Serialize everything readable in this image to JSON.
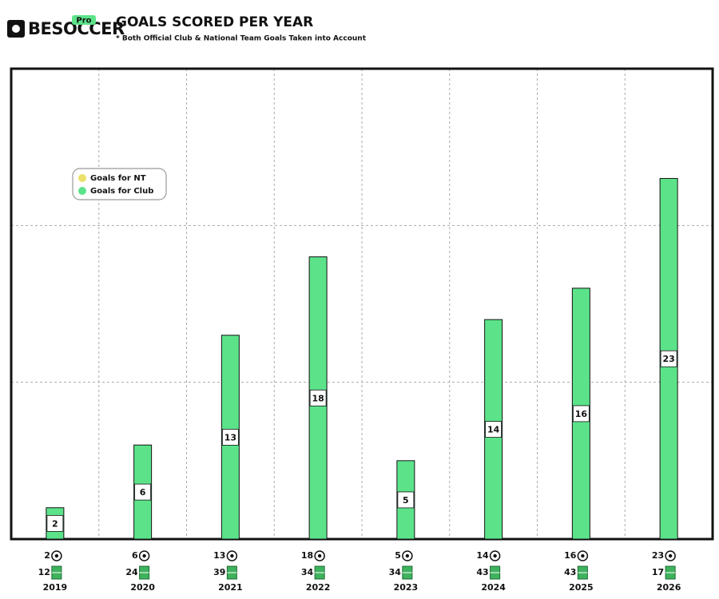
{
  "header": {
    "logo": "BESOCCER",
    "badge": "Pro"
  },
  "chart_data": {
    "type": "bar",
    "title": "GOALS SCORED PER YEAR",
    "subtitle": "* Both Official Club & National Team Goals Taken into Account",
    "categories": [
      "2019",
      "2020",
      "2021",
      "2022",
      "2023",
      "2024",
      "2025",
      "2026"
    ],
    "series": [
      {
        "name": "Goals for NT",
        "color": "#ece06a",
        "values": [
          0,
          0,
          0,
          0,
          0,
          0,
          0,
          0
        ]
      },
      {
        "name": "Goals for Club",
        "color": "#5ce38a",
        "values": [
          2,
          6,
          13,
          18,
          5,
          14,
          16,
          23
        ]
      }
    ],
    "total_goals": [
      2,
      6,
      13,
      18,
      5,
      14,
      16,
      23
    ],
    "matches": [
      12,
      24,
      39,
      34,
      34,
      43,
      43,
      17
    ],
    "ylim": [
      0,
      30
    ],
    "yticks": [
      0,
      10,
      20,
      30
    ],
    "grid": true,
    "legend": "upper-left"
  }
}
